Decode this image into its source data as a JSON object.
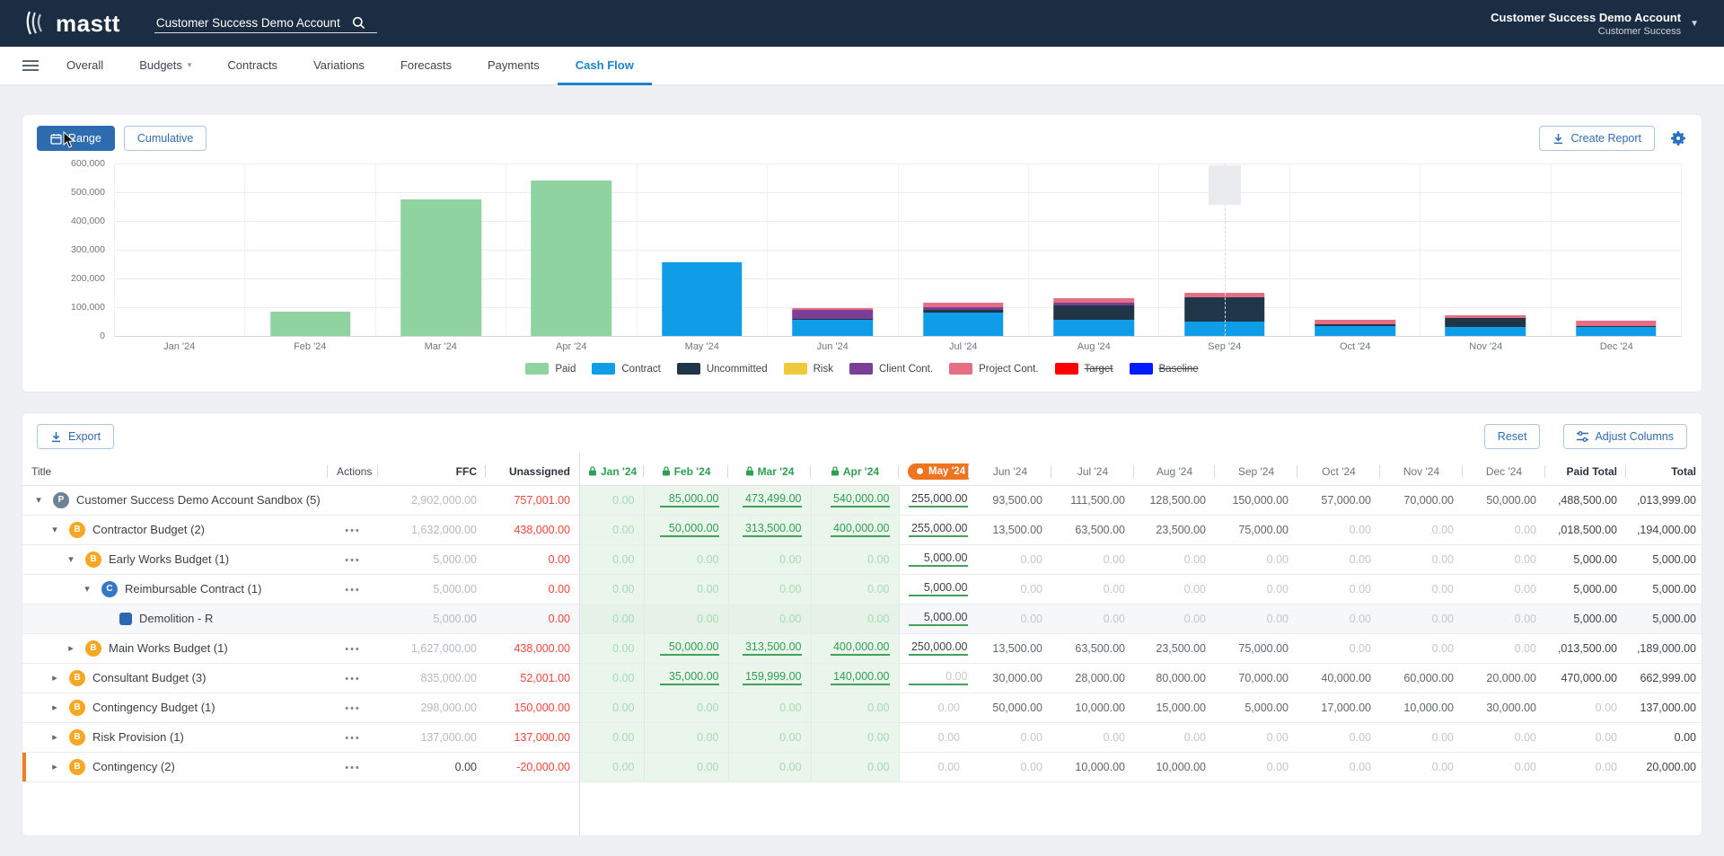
{
  "topbar": {
    "logo_text": "mastt",
    "search_value": "Customer Success Demo Account",
    "account_name": "Customer Success Demo Account",
    "account_sub": "Customer Success"
  },
  "nav": {
    "items": [
      {
        "label": "Overall",
        "dropdown": false,
        "active": false
      },
      {
        "label": "Budgets",
        "dropdown": true,
        "active": false
      },
      {
        "label": "Contracts",
        "dropdown": false,
        "active": false
      },
      {
        "label": "Variations",
        "dropdown": false,
        "active": false
      },
      {
        "label": "Forecasts",
        "dropdown": false,
        "active": false
      },
      {
        "label": "Payments",
        "dropdown": false,
        "active": false
      },
      {
        "label": "Cash Flow",
        "dropdown": false,
        "active": true
      }
    ]
  },
  "toolbar": {
    "range_label": "Range",
    "cumulative_label": "Cumulative",
    "create_report_label": "Create Report"
  },
  "chart_data": {
    "type": "bar",
    "stacked": true,
    "title": "",
    "ylim": [
      0,
      600000
    ],
    "y_ticks": [
      "600,000",
      "500,000",
      "400,000",
      "300,000",
      "200,000",
      "100,000",
      "0"
    ],
    "categories": [
      "Jan '24",
      "Feb '24",
      "Mar '24",
      "Apr '24",
      "May '24",
      "Jun '24",
      "Jul '24",
      "Aug '24",
      "Sep '24",
      "Oct '24",
      "Nov '24",
      "Dec '24"
    ],
    "series": [
      {
        "name": "Paid",
        "color": "#8fd4a0",
        "values": [
          0,
          85000,
          473499,
          540000,
          0,
          0,
          0,
          0,
          0,
          0,
          0,
          0
        ]
      },
      {
        "name": "Contract",
        "color": "#0f9de8",
        "values": [
          0,
          0,
          0,
          0,
          255000,
          55000,
          80000,
          55000,
          50000,
          35000,
          32000,
          30000
        ]
      },
      {
        "name": "Uncommitted",
        "color": "#203648",
        "values": [
          0,
          0,
          0,
          0,
          0,
          3000,
          8000,
          50000,
          85000,
          7000,
          30000,
          2000
        ]
      },
      {
        "name": "Risk",
        "color": "#efc93c",
        "values": [
          0,
          0,
          0,
          0,
          0,
          0,
          0,
          0,
          0,
          0,
          0,
          0
        ]
      },
      {
        "name": "Client Cont.",
        "color": "#7b3f98",
        "values": [
          0,
          0,
          0,
          0,
          0,
          30000,
          8500,
          8500,
          0,
          0,
          0,
          0
        ]
      },
      {
        "name": "Project Cont.",
        "color": "#e66e84",
        "values": [
          0,
          0,
          0,
          0,
          0,
          5500,
          15000,
          15000,
          15000,
          15000,
          8000,
          18000
        ]
      }
    ],
    "legend": [
      {
        "label": "Paid",
        "color": "#8fd4a0",
        "disabled": false
      },
      {
        "label": "Contract",
        "color": "#0f9de8",
        "disabled": false
      },
      {
        "label": "Uncommitted",
        "color": "#203648",
        "disabled": false
      },
      {
        "label": "Risk",
        "color": "#efc93c",
        "disabled": false
      },
      {
        "label": "Client Cont.",
        "color": "#7b3f98",
        "disabled": false
      },
      {
        "label": "Project Cont.",
        "color": "#e66e84",
        "disabled": false
      },
      {
        "label": "Target",
        "color": "#fe0000",
        "disabled": true
      },
      {
        "label": "Baseline",
        "color": "#001bff",
        "disabled": true
      }
    ],
    "today_marker_month_index": 8,
    "legend_position": "bottom",
    "grid": true
  },
  "table": {
    "export_label": "Export",
    "reset_label": "Reset",
    "adjust_columns_label": "Adjust Columns",
    "fixed_headers": [
      "Title",
      "Actions",
      "FFC",
      "Unassigned"
    ],
    "month_headers": [
      {
        "label": "Jan '24",
        "state": "locked"
      },
      {
        "label": "Feb '24",
        "state": "locked"
      },
      {
        "label": "Mar '24",
        "state": "locked"
      },
      {
        "label": "Apr '24",
        "state": "locked"
      },
      {
        "label": "May '24",
        "state": "current"
      },
      {
        "label": "Jun '24",
        "state": "future"
      },
      {
        "label": "Jul '24",
        "state": "future"
      },
      {
        "label": "Aug '24",
        "state": "future"
      },
      {
        "label": "Sep '24",
        "state": "future"
      },
      {
        "label": "Oct '24",
        "state": "future"
      },
      {
        "label": "Nov '24",
        "state": "future"
      },
      {
        "label": "Dec '24",
        "state": "future"
      }
    ],
    "total_headers": [
      "Paid Total",
      "Total"
    ],
    "rows": [
      {
        "title": "Customer Success Demo Account Sandbox",
        "count": "(5)",
        "badge": "P",
        "level": 0,
        "expanded": true,
        "has_chevron": true,
        "actions": false,
        "ffc": "2,902,000.00",
        "ffc_dark": false,
        "unassigned": "757,001.00",
        "months": [
          "0.00",
          "85,000.00",
          "473,499.00",
          "540,000.00",
          "255,000.00",
          "93,500.00",
          "111,500.00",
          "128,500.00",
          "150,000.00",
          "57,000.00",
          "70,000.00",
          "50,000.00"
        ],
        "may_underline": true,
        "paid_total": ",488,500.00",
        "total": ",013,999.00",
        "striped": false,
        "accent": false
      },
      {
        "title": "Contractor Budget",
        "count": "(2)",
        "badge": "B",
        "level": 1,
        "expanded": true,
        "has_chevron": true,
        "actions": true,
        "ffc": "1,632,000.00",
        "ffc_dark": false,
        "unassigned": "438,000.00",
        "months": [
          "0.00",
          "50,000.00",
          "313,500.00",
          "400,000.00",
          "255,000.00",
          "13,500.00",
          "63,500.00",
          "23,500.00",
          "75,000.00",
          "0.00",
          "0.00",
          "0.00"
        ],
        "may_underline": true,
        "paid_total": ",018,500.00",
        "total": ",194,000.00",
        "striped": false,
        "accent": false
      },
      {
        "title": "Early Works Budget",
        "count": "(1)",
        "badge": "B",
        "level": 2,
        "expanded": true,
        "has_chevron": true,
        "actions": true,
        "ffc": "5,000.00",
        "ffc_dark": false,
        "unassigned": "0.00",
        "months": [
          "0.00",
          "0.00",
          "0.00",
          "0.00",
          "5,000.00",
          "0.00",
          "0.00",
          "0.00",
          "0.00",
          "0.00",
          "0.00",
          "0.00"
        ],
        "may_underline": true,
        "paid_total": "5,000.00",
        "total": "5,000.00",
        "striped": false,
        "accent": false
      },
      {
        "title": "Reimbursable Contract",
        "count": "(1)",
        "badge": "C",
        "level": 3,
        "expanded": true,
        "has_chevron": true,
        "actions": true,
        "ffc": "5,000.00",
        "ffc_dark": false,
        "unassigned": "0.00",
        "months": [
          "0.00",
          "0.00",
          "0.00",
          "0.00",
          "5,000.00",
          "0.00",
          "0.00",
          "0.00",
          "0.00",
          "0.00",
          "0.00",
          "0.00"
        ],
        "may_underline": true,
        "paid_total": "5,000.00",
        "total": "5,000.00",
        "striped": false,
        "accent": false
      },
      {
        "title": "Demolition - R",
        "count": "",
        "badge": "SQ",
        "level": 4,
        "expanded": false,
        "has_chevron": false,
        "actions": false,
        "ffc": "5,000.00",
        "ffc_dark": false,
        "unassigned": "0.00",
        "months": [
          "0.00",
          "0.00",
          "0.00",
          "0.00",
          "5,000.00",
          "0.00",
          "0.00",
          "0.00",
          "0.00",
          "0.00",
          "0.00",
          "0.00"
        ],
        "may_underline": true,
        "paid_total": "5,000.00",
        "total": "5,000.00",
        "striped": true,
        "accent": false
      },
      {
        "title": "Main Works Budget",
        "count": "(1)",
        "badge": "B",
        "level": 2,
        "expanded": false,
        "has_chevron": true,
        "actions": true,
        "ffc": "1,627,000.00",
        "ffc_dark": false,
        "unassigned": "438,000.00",
        "months": [
          "0.00",
          "50,000.00",
          "313,500.00",
          "400,000.00",
          "250,000.00",
          "13,500.00",
          "63,500.00",
          "23,500.00",
          "75,000.00",
          "0.00",
          "0.00",
          "0.00"
        ],
        "may_underline": true,
        "paid_total": ",013,500.00",
        "total": ",189,000.00",
        "striped": false,
        "accent": false
      },
      {
        "title": "Consultant Budget",
        "count": "(3)",
        "badge": "B",
        "level": 1,
        "expanded": false,
        "has_chevron": true,
        "actions": true,
        "ffc": "835,000.00",
        "ffc_dark": false,
        "unassigned": "52,001.00",
        "months": [
          "0.00",
          "35,000.00",
          "159,999.00",
          "140,000.00",
          "0.00",
          "30,000.00",
          "28,000.00",
          "80,000.00",
          "70,000.00",
          "40,000.00",
          "60,000.00",
          "20,000.00"
        ],
        "may_underline": true,
        "paid_total": "470,000.00",
        "total": "662,999.00",
        "striped": false,
        "accent": false
      },
      {
        "title": "Contingency Budget",
        "count": "(1)",
        "badge": "B",
        "level": 1,
        "expanded": false,
        "has_chevron": true,
        "actions": true,
        "ffc": "298,000.00",
        "ffc_dark": false,
        "unassigned": "150,000.00",
        "months": [
          "0.00",
          "0.00",
          "0.00",
          "0.00",
          "0.00",
          "50,000.00",
          "10,000.00",
          "15,000.00",
          "5,000.00",
          "17,000.00",
          "10,000.00",
          "30,000.00"
        ],
        "may_underline": false,
        "paid_total": "0.00",
        "total": "137,000.00",
        "striped": false,
        "accent": false
      },
      {
        "title": "Risk Provision",
        "count": "(1)",
        "badge": "B",
        "level": 1,
        "expanded": false,
        "has_chevron": true,
        "actions": true,
        "ffc": "137,000.00",
        "ffc_dark": false,
        "unassigned": "137,000.00",
        "months": [
          "0.00",
          "0.00",
          "0.00",
          "0.00",
          "0.00",
          "0.00",
          "0.00",
          "0.00",
          "0.00",
          "0.00",
          "0.00",
          "0.00"
        ],
        "may_underline": false,
        "paid_total": "0.00",
        "total": "0.00",
        "striped": false,
        "accent": false
      },
      {
        "title": "Contingency",
        "count": "(2)",
        "badge": "B",
        "level": 1,
        "expanded": false,
        "has_chevron": true,
        "actions": true,
        "ffc": "0.00",
        "ffc_dark": true,
        "unassigned": "-20,000.00",
        "months": [
          "0.00",
          "0.00",
          "0.00",
          "0.00",
          "0.00",
          "0.00",
          "10,000.00",
          "10,000.00",
          "0.00",
          "0.00",
          "0.00",
          "0.00"
        ],
        "may_underline": false,
        "paid_total": "0.00",
        "total": "20,000.00",
        "striped": false,
        "accent": true
      }
    ],
    "badge_colors": {
      "P": "#6d8395",
      "B": "#f6a723",
      "C": "#3477c9",
      "SQ": "#2c67b6"
    },
    "column_widths": {
      "title": 340,
      "actions": 56,
      "ffc": 120,
      "unassigned": 104,
      "months": [
        72,
        94,
        92,
        98,
        78,
        92,
        92,
        90,
        92,
        92,
        92,
        92
      ],
      "paid_total": 90,
      "total": 88
    }
  }
}
